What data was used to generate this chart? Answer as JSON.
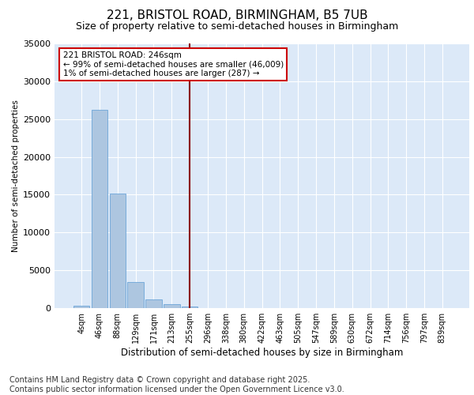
{
  "title_line1": "221, BRISTOL ROAD, BIRMINGHAM, B5 7UB",
  "title_line2": "Size of property relative to semi-detached houses in Birmingham",
  "xlabel": "Distribution of semi-detached houses by size in Birmingham",
  "ylabel": "Number of semi-detached properties",
  "categories": [
    "4sqm",
    "46sqm",
    "88sqm",
    "129sqm",
    "171sqm",
    "213sqm",
    "255sqm",
    "296sqm",
    "338sqm",
    "380sqm",
    "422sqm",
    "463sqm",
    "505sqm",
    "547sqm",
    "589sqm",
    "630sqm",
    "672sqm",
    "714sqm",
    "756sqm",
    "797sqm",
    "839sqm"
  ],
  "bar_values": [
    300,
    26200,
    15200,
    3400,
    1100,
    500,
    200,
    50,
    20,
    10,
    5,
    3,
    2,
    1,
    1,
    1,
    1,
    1,
    1,
    1,
    1
  ],
  "bar_color": "#adc6e0",
  "bar_edge_color": "#5b9bd5",
  "vline_x": 6.0,
  "vline_color": "#8b0000",
  "annotation_text": "221 BRISTOL ROAD: 246sqm\n← 99% of semi-detached houses are smaller (46,009)\n1% of semi-detached houses are larger (287) →",
  "annotation_box_color": "#ffffff",
  "annotation_box_edge": "#cc0000",
  "ylim": [
    0,
    35000
  ],
  "yticks": [
    0,
    5000,
    10000,
    15000,
    20000,
    25000,
    30000,
    35000
  ],
  "background_color": "#dce9f8",
  "footnote": "Contains HM Land Registry data © Crown copyright and database right 2025.\nContains public sector information licensed under the Open Government Licence v3.0.",
  "title_fontsize": 11,
  "subtitle_fontsize": 9,
  "footnote_fontsize": 7
}
